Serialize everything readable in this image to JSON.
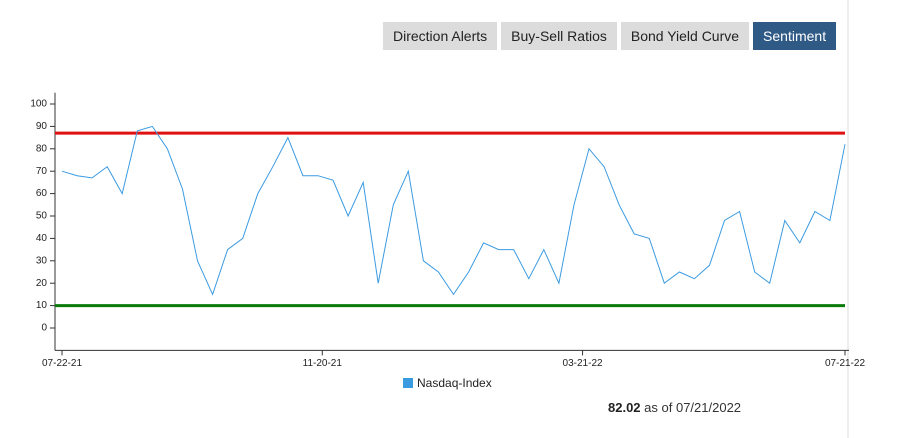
{
  "tabs": [
    "Direction Alerts",
    "Buy-Sell Ratios",
    "Bond Yield Curve",
    "Sentiment"
  ],
  "active_tab": 3,
  "chart_data": {
    "type": "line",
    "x": [
      "07-22-21",
      "07-29-21",
      "08-05-21",
      "08-12-21",
      "08-19-21",
      "08-26-21",
      "09-02-21",
      "09-09-21",
      "09-16-21",
      "09-23-21",
      "09-30-21",
      "10-07-21",
      "10-14-21",
      "10-21-21",
      "10-28-21",
      "11-04-21",
      "11-11-21",
      "11-18-21",
      "11-25-21",
      "12-02-21",
      "12-09-21",
      "12-16-21",
      "12-23-21",
      "12-30-21",
      "01-06-22",
      "01-13-22",
      "01-20-22",
      "01-27-22",
      "02-03-22",
      "02-10-22",
      "02-17-22",
      "02-24-22",
      "03-03-22",
      "03-10-22",
      "03-17-22",
      "03-24-22",
      "03-31-22",
      "04-07-22",
      "04-14-22",
      "04-21-22",
      "04-28-22",
      "05-05-22",
      "05-12-22",
      "05-19-22",
      "05-26-22",
      "06-02-22",
      "06-09-22",
      "06-16-22",
      "06-23-22",
      "06-30-22",
      "07-07-22",
      "07-14-22",
      "07-21-22"
    ],
    "series": [
      {
        "name": "Nasdaq-Index",
        "color": "#3b9be0",
        "values": [
          70,
          68,
          67,
          72,
          60,
          88,
          90,
          80,
          62,
          30,
          15,
          35,
          40,
          60,
          72,
          85,
          68,
          68,
          66,
          50,
          65,
          20,
          55,
          70,
          30,
          25,
          15,
          25,
          38,
          35,
          35,
          22,
          35,
          20,
          55,
          80,
          72,
          55,
          42,
          40,
          20,
          25,
          22,
          28,
          48,
          52,
          25,
          20,
          48,
          38,
          52,
          48,
          82.02
        ]
      }
    ],
    "xlim": [
      "07-22-21",
      "07-21-22"
    ],
    "xticks": [
      "07-22-21",
      "11-20-21",
      "03-21-22",
      "07-21-22"
    ],
    "ylim": [
      -10,
      105
    ],
    "yticks": [
      0,
      10,
      20,
      30,
      40,
      50,
      60,
      70,
      80,
      90,
      100
    ],
    "reference_lines": [
      {
        "value": 87,
        "color": "#e01010"
      },
      {
        "value": 10,
        "color": "#0a7a0a"
      }
    ]
  },
  "as_of_text": "as of 07/21/2022"
}
